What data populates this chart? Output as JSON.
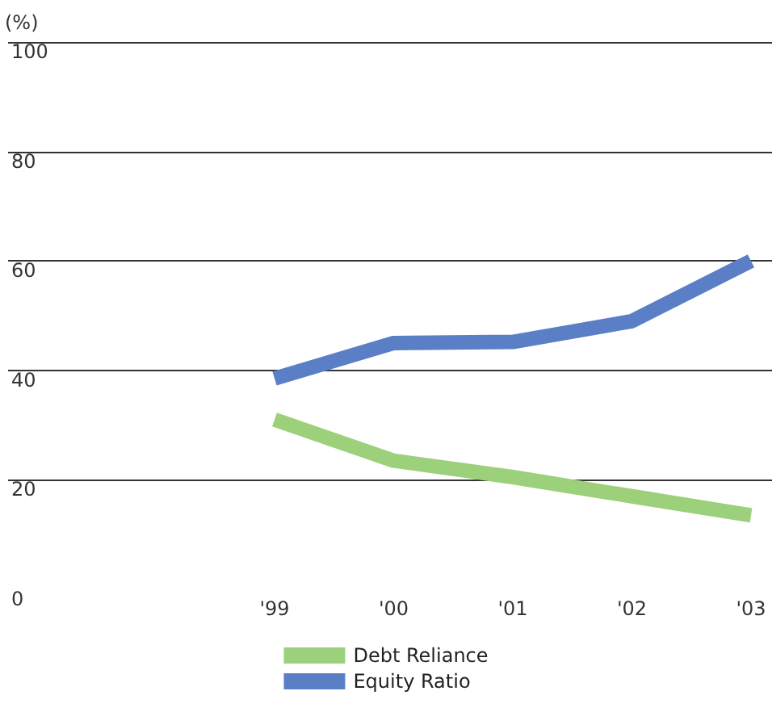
{
  "chart_data": {
    "type": "line",
    "ylabel": "(%)",
    "categories": [
      "'99",
      "'00",
      "'01",
      "'02",
      "'03"
    ],
    "series": [
      {
        "name": "Debt Reliance",
        "color": "#9dd07a",
        "values": [
          31,
          23.5,
          20.5,
          17,
          13.5
        ]
      },
      {
        "name": "Equity Ratio",
        "color": "#5b7fc6",
        "values": [
          38.5,
          45,
          45.2,
          49,
          60
        ]
      }
    ],
    "ylim": [
      0,
      100
    ],
    "yticks": [
      0,
      20,
      40,
      60,
      80,
      100
    ],
    "grid": "y",
    "legend": "bottom",
    "marker": "none",
    "line_style": "solid"
  }
}
